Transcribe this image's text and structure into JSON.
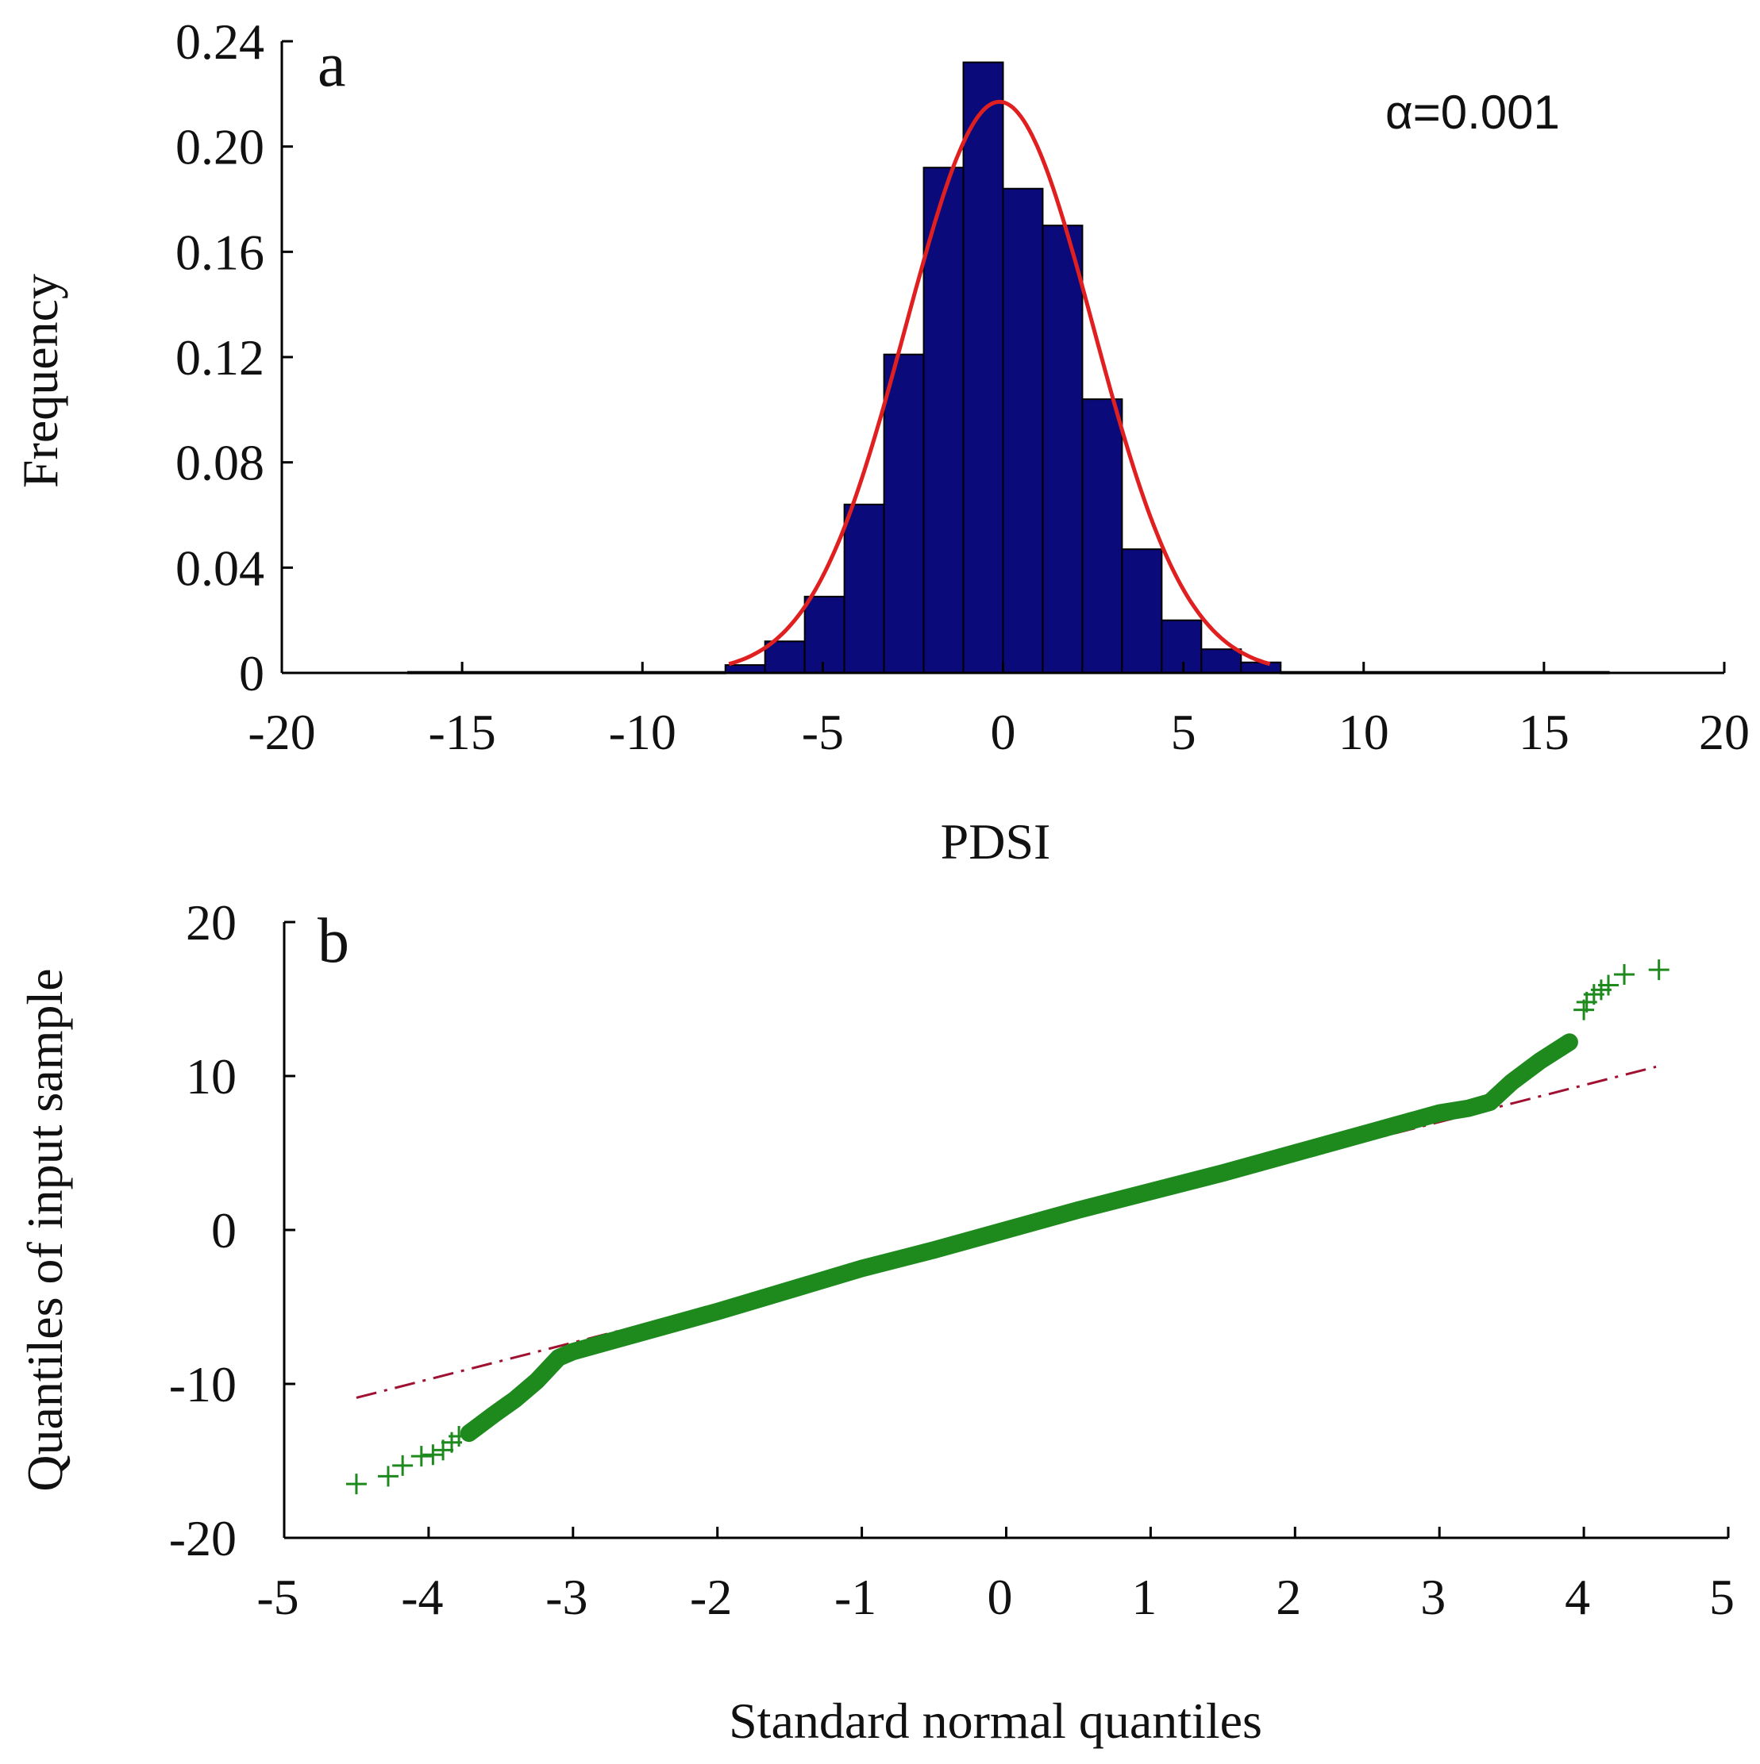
{
  "chart_data": [
    {
      "type": "bar",
      "panel_label": "a",
      "annotation": "α=0.001",
      "title": "",
      "xlabel": "PDSI",
      "ylabel": "Frequency",
      "xlim": [
        -20,
        20
      ],
      "ylim": [
        0,
        0.24
      ],
      "x_ticks": [
        "-20",
        "-15",
        "-10",
        "-5",
        "0",
        "5",
        "10",
        "15",
        "20"
      ],
      "y_ticks": [
        "0",
        "0.04",
        "0.08",
        "0.12",
        "0.16",
        "0.20",
        "0.24"
      ],
      "bin_width": 1.1,
      "bins": [
        {
          "x0": -16.5,
          "x1": -7.7,
          "value": 0.0004
        },
        {
          "x0": -7.7,
          "x1": -6.6,
          "value": 0.003
        },
        {
          "x0": -6.6,
          "x1": -5.5,
          "value": 0.012
        },
        {
          "x0": -5.5,
          "x1": -4.4,
          "value": 0.029
        },
        {
          "x0": -4.4,
          "x1": -3.3,
          "value": 0.064
        },
        {
          "x0": -3.3,
          "x1": -2.2,
          "value": 0.121
        },
        {
          "x0": -2.2,
          "x1": -1.1,
          "value": 0.192
        },
        {
          "x0": -1.1,
          "x1": 0.0,
          "value": 0.232
        },
        {
          "x0": 0.0,
          "x1": 1.1,
          "value": 0.184
        },
        {
          "x0": 1.1,
          "x1": 2.2,
          "value": 0.17
        },
        {
          "x0": 2.2,
          "x1": 3.3,
          "value": 0.104
        },
        {
          "x0": 3.3,
          "x1": 4.4,
          "value": 0.047
        },
        {
          "x0": 4.4,
          "x1": 5.5,
          "value": 0.02
        },
        {
          "x0": 5.5,
          "x1": 6.6,
          "value": 0.009
        },
        {
          "x0": 6.6,
          "x1": 7.7,
          "value": 0.004
        },
        {
          "x0": 7.7,
          "x1": 16.8,
          "value": 0.0004
        }
      ],
      "fit_curve": {
        "type": "normal",
        "mean": -0.1,
        "peak": 0.217,
        "sd": 2.6,
        "x_range": [
          -7.6,
          7.4
        ]
      },
      "bar_color": "#0a0a7a",
      "curve_color": "#e02020"
    },
    {
      "type": "scatter",
      "panel_label": "b",
      "title": "",
      "xlabel": "Standard normal quantiles",
      "ylabel": "Quantiles of input sample",
      "xlim": [
        -5,
        5
      ],
      "ylim": [
        -20,
        20
      ],
      "x_ticks": [
        "-5",
        "-4",
        "-3",
        "-2",
        "-1",
        "0",
        "1",
        "2",
        "3",
        "4",
        "5"
      ],
      "y_ticks": [
        "-20",
        "-10",
        "0",
        "10",
        "20"
      ],
      "series": [
        {
          "name": "sample quantiles",
          "color": "#1e8a1e",
          "points": [
            [
              -4.5,
              -16.5
            ],
            [
              -4.28,
              -16.0
            ],
            [
              -4.18,
              -15.3
            ],
            [
              -4.05,
              -14.7
            ],
            [
              -3.97,
              -14.6
            ],
            [
              -3.9,
              -14.3
            ],
            [
              -3.84,
              -13.8
            ],
            [
              -3.79,
              -13.4
            ],
            [
              4.0,
              14.3
            ],
            [
              4.02,
              14.8
            ],
            [
              4.07,
              15.3
            ],
            [
              4.12,
              15.6
            ],
            [
              4.17,
              15.9
            ],
            [
              4.28,
              16.6
            ],
            [
              4.52,
              16.9
            ]
          ],
          "trend": [
            [
              -3.72,
              -13.2
            ],
            [
              -3.55,
              -12.0
            ],
            [
              -3.4,
              -11.0
            ],
            [
              -3.25,
              -9.8
            ],
            [
              -3.1,
              -8.3
            ],
            [
              -3.0,
              -7.9
            ],
            [
              -2.5,
              -6.6
            ],
            [
              -2.0,
              -5.3
            ],
            [
              -1.5,
              -3.9
            ],
            [
              -1.0,
              -2.5
            ],
            [
              -0.5,
              -1.3
            ],
            [
              0.0,
              0.0
            ],
            [
              0.5,
              1.3
            ],
            [
              1.0,
              2.5
            ],
            [
              1.5,
              3.7
            ],
            [
              2.0,
              5.0
            ],
            [
              2.5,
              6.3
            ],
            [
              3.0,
              7.6
            ],
            [
              3.2,
              7.9
            ],
            [
              3.35,
              8.3
            ],
            [
              3.5,
              9.6
            ],
            [
              3.7,
              11.0
            ],
            [
              3.9,
              12.2
            ]
          ]
        }
      ],
      "reference_line": {
        "points": [
          [
            -4.5,
            -10.9
          ],
          [
            4.5,
            10.6
          ]
        ],
        "color": "#a01030",
        "style": "dash-dot"
      }
    }
  ]
}
